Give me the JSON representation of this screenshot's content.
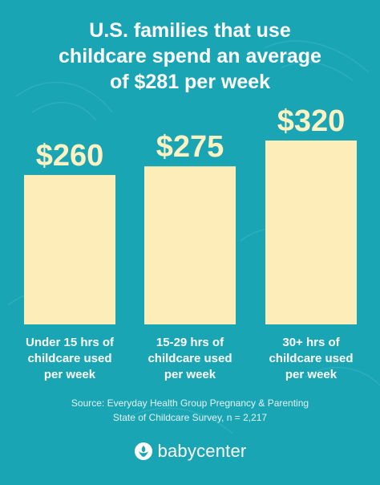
{
  "chart_data": {
    "type": "bar",
    "title_lines": [
      "U.S. families that use",
      "childcare spend an average",
      "of $281 per week"
    ],
    "categories": [
      [
        "Under 15 hrs of",
        "childcare used",
        "per week"
      ],
      [
        "15-29 hrs of",
        "childcare used",
        "per week"
      ],
      [
        "30+ hrs of",
        "childcare used",
        "per week"
      ]
    ],
    "values": [
      260,
      275,
      320
    ],
    "value_labels": [
      "$260",
      "$275",
      "$320"
    ],
    "ylim": [
      0,
      320
    ],
    "bar_color": "#fdeeb9",
    "grid": false
  },
  "source_lines": [
    "Source: Everyday Health Group Pregnancy & Parenting",
    "State of Childcare Survey, n = 2,217"
  ],
  "brand": {
    "name": "babycenter",
    "icon": "babycenter-logo-icon"
  },
  "colors": {
    "background": "#1aa5b5",
    "bar": "#fdeeb9",
    "value_text": "#fef2c2",
    "text": "#ffffff"
  }
}
